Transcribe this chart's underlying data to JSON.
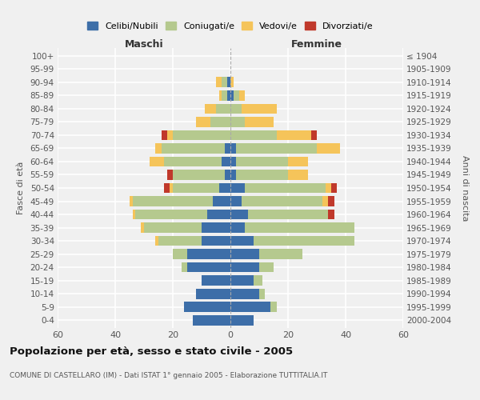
{
  "age_groups": [
    "0-4",
    "5-9",
    "10-14",
    "15-19",
    "20-24",
    "25-29",
    "30-34",
    "35-39",
    "40-44",
    "45-49",
    "50-54",
    "55-59",
    "60-64",
    "65-69",
    "70-74",
    "75-79",
    "80-84",
    "85-89",
    "90-94",
    "95-99",
    "100+"
  ],
  "birth_years": [
    "2000-2004",
    "1995-1999",
    "1990-1994",
    "1985-1989",
    "1980-1984",
    "1975-1979",
    "1970-1974",
    "1965-1969",
    "1960-1964",
    "1955-1959",
    "1950-1954",
    "1945-1949",
    "1940-1944",
    "1935-1939",
    "1930-1934",
    "1925-1929",
    "1920-1924",
    "1915-1919",
    "1910-1914",
    "1905-1909",
    "≤ 1904"
  ],
  "male": {
    "celibi": [
      13,
      16,
      12,
      10,
      15,
      15,
      10,
      10,
      8,
      6,
      4,
      2,
      3,
      2,
      0,
      0,
      0,
      1,
      1,
      0,
      0
    ],
    "coniugati": [
      0,
      0,
      0,
      0,
      2,
      5,
      15,
      20,
      25,
      28,
      16,
      18,
      20,
      22,
      20,
      7,
      5,
      2,
      2,
      0,
      0
    ],
    "vedovi": [
      0,
      0,
      0,
      0,
      0,
      0,
      1,
      1,
      1,
      1,
      1,
      0,
      5,
      2,
      2,
      5,
      4,
      1,
      2,
      0,
      0
    ],
    "divorziati": [
      0,
      0,
      0,
      0,
      0,
      0,
      0,
      0,
      0,
      0,
      2,
      2,
      0,
      0,
      2,
      0,
      0,
      0,
      0,
      0,
      0
    ]
  },
  "female": {
    "nubili": [
      8,
      14,
      10,
      8,
      10,
      10,
      8,
      5,
      6,
      4,
      5,
      2,
      2,
      2,
      0,
      0,
      0,
      1,
      0,
      0,
      0
    ],
    "coniugate": [
      0,
      2,
      2,
      3,
      5,
      15,
      35,
      38,
      28,
      28,
      28,
      18,
      18,
      28,
      16,
      5,
      4,
      2,
      0,
      0,
      0
    ],
    "vedove": [
      0,
      0,
      0,
      0,
      0,
      0,
      0,
      0,
      0,
      2,
      2,
      7,
      7,
      8,
      12,
      10,
      12,
      2,
      1,
      0,
      0
    ],
    "divorziate": [
      0,
      0,
      0,
      0,
      0,
      0,
      0,
      0,
      2,
      2,
      2,
      0,
      0,
      0,
      2,
      0,
      0,
      0,
      0,
      0,
      0
    ]
  },
  "colors": {
    "celibi": "#3d6ea8",
    "coniugati": "#b5c98e",
    "vedovi": "#f5c45a",
    "divorziati": "#c0392b"
  },
  "xlim": 60,
  "title": "Popolazione per età, sesso e stato civile - 2005",
  "subtitle": "COMUNE DI CASTELLARO (IM) - Dati ISTAT 1° gennaio 2005 - Elaborazione TUTTITALIA.IT",
  "ylabel_left": "Fasce di età",
  "ylabel_right": "Anni di nascita",
  "xlabel_left": "Maschi",
  "xlabel_right": "Femmine",
  "bg_color": "#f0f0f0",
  "legend_labels": [
    "Celibi/Nubili",
    "Coniugati/e",
    "Vedovi/e",
    "Divorziati/e"
  ]
}
